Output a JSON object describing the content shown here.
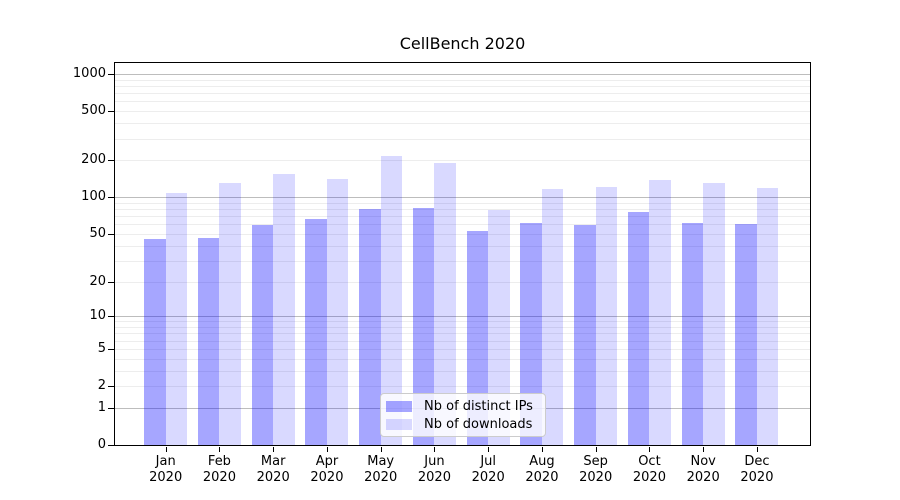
{
  "chart_data": {
    "type": "bar",
    "title": "CellBench 2020",
    "categories": [
      {
        "month": "Jan",
        "year": "2020"
      },
      {
        "month": "Feb",
        "year": "2020"
      },
      {
        "month": "Mar",
        "year": "2020"
      },
      {
        "month": "Apr",
        "year": "2020"
      },
      {
        "month": "May",
        "year": "2020"
      },
      {
        "month": "Jun",
        "year": "2020"
      },
      {
        "month": "Jul",
        "year": "2020"
      },
      {
        "month": "Aug",
        "year": "2020"
      },
      {
        "month": "Sep",
        "year": "2020"
      },
      {
        "month": "Oct",
        "year": "2020"
      },
      {
        "month": "Nov",
        "year": "2020"
      },
      {
        "month": "Dec",
        "year": "2020"
      }
    ],
    "series": [
      {
        "name": "Nb of distinct IPs",
        "color": "rgba(0,0,255,0.35)",
        "values": [
          45,
          46,
          59,
          66,
          80,
          82,
          53,
          62,
          59,
          76,
          62,
          60
        ]
      },
      {
        "name": "Nb of downloads",
        "color": "rgba(0,0,255,0.15)",
        "values": [
          109,
          130,
          154,
          140,
          215,
          190,
          79,
          117,
          121,
          138,
          131,
          118
        ]
      }
    ],
    "xlabel": "",
    "ylabel": "",
    "yscale": "symlog",
    "symlog_constant": 1,
    "yticks": [
      0,
      1,
      2,
      5,
      10,
      20,
      50,
      100,
      200,
      500,
      1000
    ],
    "ylim": [
      0,
      1250
    ],
    "grid": true,
    "legend_position": "inside lower center",
    "colors": {
      "bar_dark": "rgba(0,0,255,0.35)",
      "bar_light": "rgba(0,0,255,0.15)",
      "major_grid": "#bdbdbd",
      "minor_grid": "#ededed",
      "axis": "#000000",
      "legend_border": "#cccccc",
      "legend_bg": "rgba(255,255,255,0.8)",
      "text": "#000000"
    }
  }
}
